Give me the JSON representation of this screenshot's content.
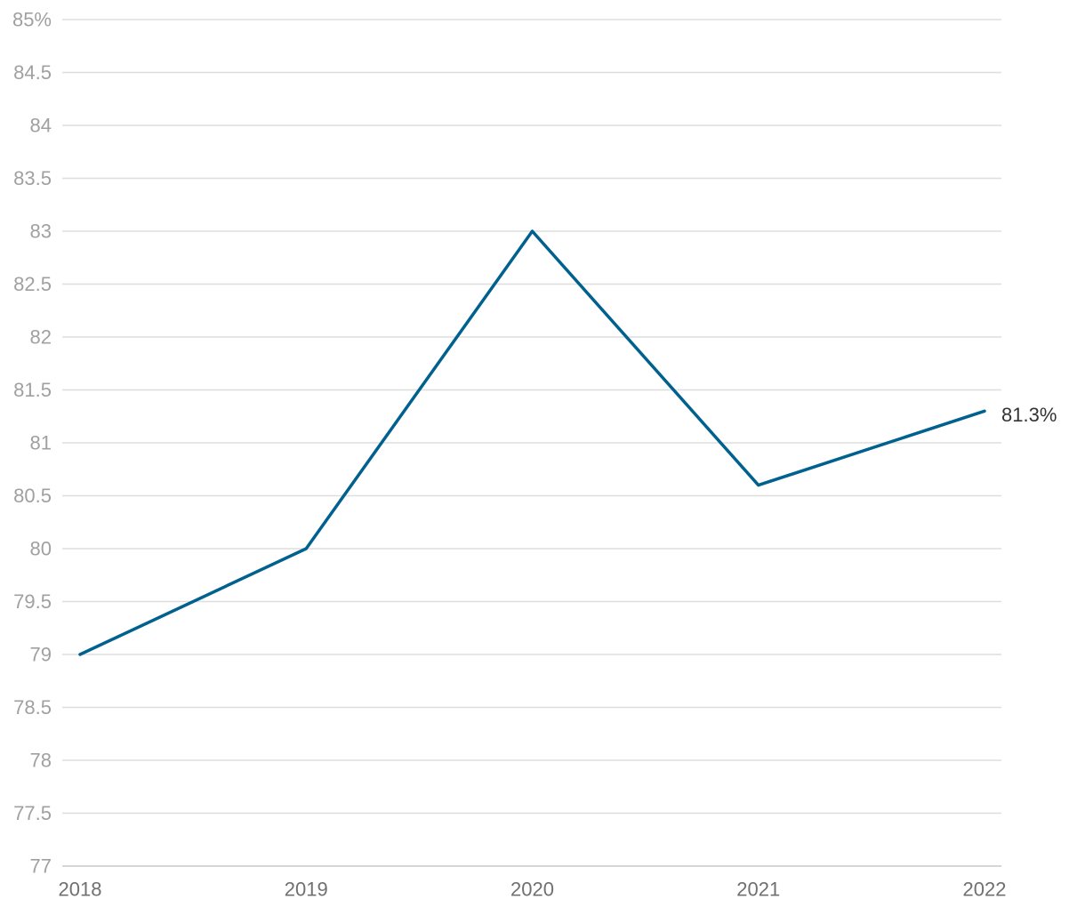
{
  "chart_data": {
    "type": "line",
    "title": "",
    "xlabel": "",
    "ylabel": "",
    "categories": [
      "2018",
      "2019",
      "2020",
      "2021",
      "2022"
    ],
    "series": [
      {
        "values": [
          79.0,
          80.0,
          83.0,
          80.6,
          81.3
        ],
        "color": "#00618f"
      }
    ],
    "ylim": [
      77,
      85
    ],
    "y_ticks": [
      85,
      84.5,
      84,
      83.5,
      83,
      82.5,
      82,
      81.5,
      81,
      80.5,
      80,
      79.5,
      79,
      78.5,
      78,
      77.5,
      77
    ],
    "y_tick_labels": [
      "85%",
      "84.5",
      "84",
      "83.5",
      "83",
      "82.5",
      "82",
      "81.5",
      "81",
      "80.5",
      "80",
      "79.5",
      "79",
      "78.5",
      "78",
      "77.5",
      "77"
    ],
    "end_label": "81.3%",
    "grid": true,
    "legend": "none"
  }
}
